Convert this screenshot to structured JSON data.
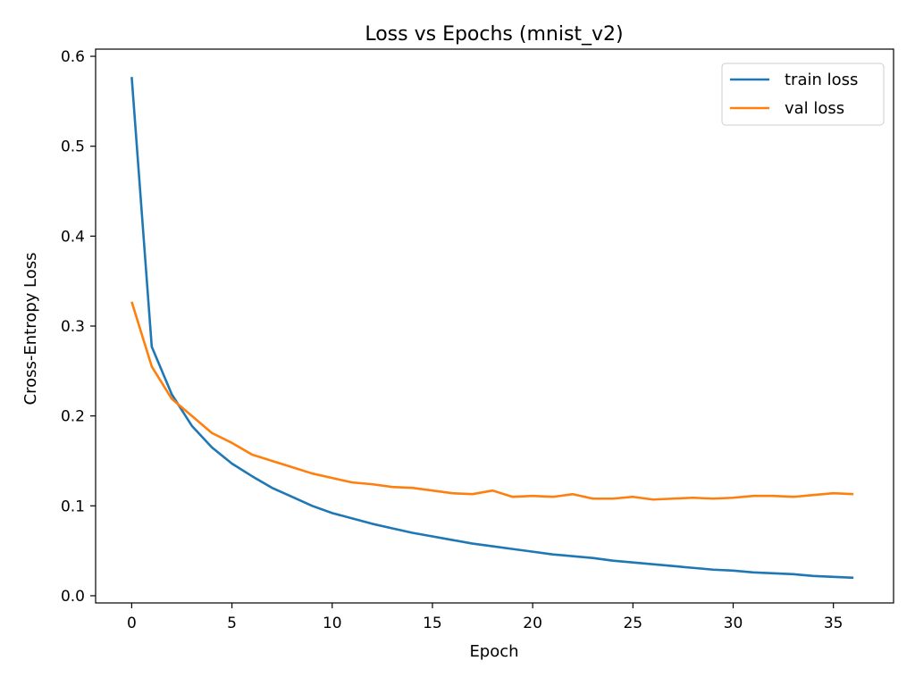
{
  "chart_data": {
    "type": "line",
    "title": "Loss vs Epochs (mnist_v2)",
    "xlabel": "Epoch",
    "ylabel": "Cross-Entropy Loss",
    "xlim": [
      -1.8,
      38
    ],
    "ylim": [
      -0.008,
      0.608
    ],
    "xticks": [
      0,
      5,
      10,
      15,
      20,
      25,
      30,
      35
    ],
    "xtick_labels": [
      "0",
      "5",
      "10",
      "15",
      "20",
      "25",
      "30",
      "35"
    ],
    "yticks": [
      0.0,
      0.1,
      0.2,
      0.3,
      0.4,
      0.5,
      0.6
    ],
    "ytick_labels": [
      "0.0",
      "0.1",
      "0.2",
      "0.3",
      "0.4",
      "0.5",
      "0.6"
    ],
    "grid": false,
    "legend": {
      "position": "top-right"
    },
    "x": [
      0,
      1,
      2,
      3,
      4,
      5,
      6,
      7,
      8,
      9,
      10,
      11,
      12,
      13,
      14,
      15,
      16,
      17,
      18,
      19,
      20,
      21,
      22,
      23,
      24,
      25,
      26,
      27,
      28,
      29,
      30,
      31,
      32,
      33,
      34,
      35,
      36
    ],
    "series": [
      {
        "name": "train loss",
        "color": "#1f77b4",
        "values": [
          0.577,
          0.277,
          0.224,
          0.189,
          0.165,
          0.147,
          0.133,
          0.12,
          0.11,
          0.1,
          0.092,
          0.086,
          0.08,
          0.075,
          0.07,
          0.066,
          0.062,
          0.058,
          0.055,
          0.052,
          0.049,
          0.046,
          0.044,
          0.042,
          0.039,
          0.037,
          0.035,
          0.033,
          0.031,
          0.029,
          0.028,
          0.026,
          0.025,
          0.024,
          0.022,
          0.021,
          0.02
        ]
      },
      {
        "name": "val loss",
        "color": "#ff7f0e",
        "values": [
          0.327,
          0.255,
          0.219,
          0.2,
          0.181,
          0.17,
          0.157,
          0.15,
          0.143,
          0.136,
          0.131,
          0.126,
          0.124,
          0.121,
          0.12,
          0.117,
          0.114,
          0.113,
          0.117,
          0.11,
          0.111,
          0.11,
          0.113,
          0.108,
          0.108,
          0.11,
          0.107,
          0.108,
          0.109,
          0.108,
          0.109,
          0.111,
          0.111,
          0.11,
          0.112,
          0.114,
          0.113
        ]
      }
    ]
  }
}
